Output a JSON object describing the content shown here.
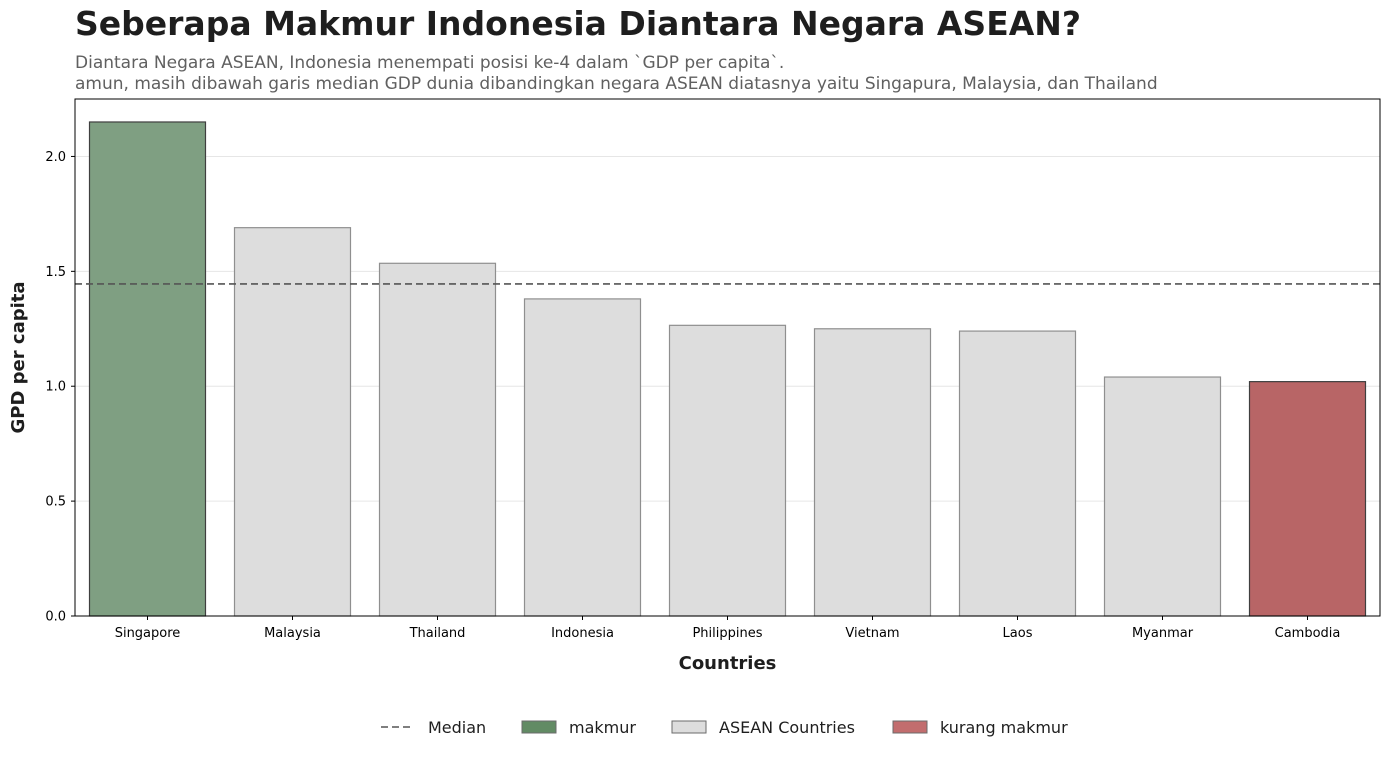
{
  "chart_data": {
    "type": "bar",
    "title": "Seberapa Makmur Indonesia Diantara Negara ASEAN?",
    "subtitle_lines": [
      "Diantara Negara ASEAN, Indonesia menempati posisi ke-4 dalam `GDP per capita`.",
      "amun, masih dibawah garis median GDP dunia dibandingkan negara ASEAN diatasnya yaitu Singapura, Malaysia, dan Thailand"
    ],
    "xlabel": "Countries",
    "ylabel": "GPD per capita",
    "categories": [
      "Singapore",
      "Malaysia",
      "Thailand",
      "Indonesia",
      "Philippines",
      "Vietnam",
      "Laos",
      "Myanmar",
      "Cambodia"
    ],
    "values": [
      2.15,
      1.69,
      1.535,
      1.38,
      1.265,
      1.25,
      1.24,
      1.04,
      1.02
    ],
    "bar_groups": [
      "makmur",
      "ASEAN Countries",
      "ASEAN Countries",
      "ASEAN Countries",
      "ASEAN Countries",
      "ASEAN Countries",
      "ASEAN Countries",
      "ASEAN Countries",
      "kurang makmur"
    ],
    "median": 1.445,
    "ylim": [
      0,
      2.25
    ],
    "yticks": [
      0.0,
      0.5,
      1.0,
      1.5,
      2.0
    ],
    "ytick_labels": [
      "0.0",
      "0.5",
      "1.0",
      "1.5",
      "2.0"
    ],
    "grid": "horizontal",
    "legend_position": "bottom-center",
    "legend": [
      {
        "label": "Median",
        "kind": "line"
      },
      {
        "label": "makmur",
        "kind": "patch"
      },
      {
        "label": "ASEAN Countries",
        "kind": "patch"
      },
      {
        "label": "kurang makmur",
        "kind": "patch"
      }
    ],
    "colors": {
      "makmur": "#7f9f82",
      "ASEAN Countries": "#dddddd",
      "kurang makmur": "#b86566",
      "median": "#555555"
    }
  }
}
